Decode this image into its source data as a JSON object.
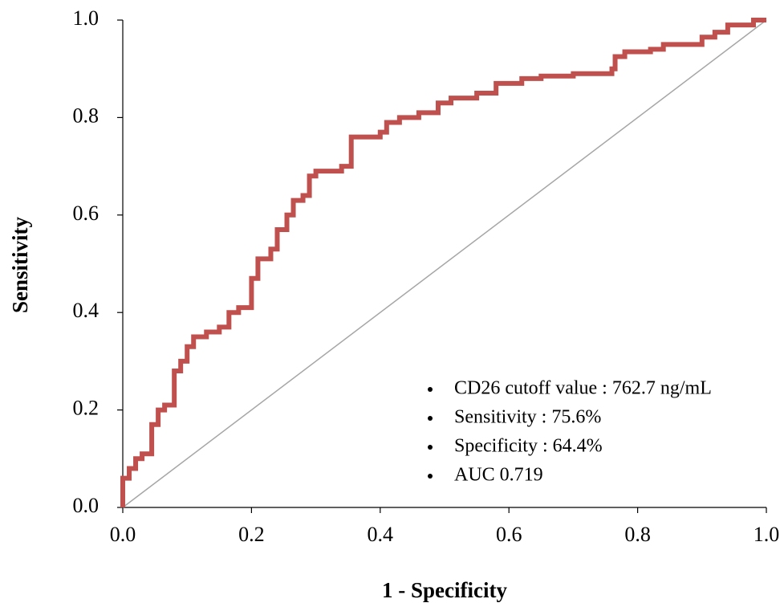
{
  "chart_data": {
    "type": "line",
    "xlabel": "1 - Specificity",
    "ylabel": "Sensitivity",
    "xlim": [
      0,
      1
    ],
    "ylim": [
      0,
      1
    ],
    "xticks": [
      {
        "value": 0,
        "label": "0.0"
      },
      0.2,
      0.4,
      0.6,
      0.8,
      {
        "value": 1,
        "label": "1.0"
      }
    ],
    "yticks": [
      {
        "value": 0,
        "label": "0.0"
      },
      0.2,
      0.4,
      0.6,
      0.8,
      {
        "value": 1,
        "label": "1.0"
      }
    ],
    "annotations": [
      "CD26 cutoff value : 762.7 ng/mL",
      "Sensitivity : 75.6%",
      "Specificity : 64.4%",
      "AUC 0.719"
    ],
    "series": [
      {
        "color": "#c0504d",
        "x": [
          0,
          0,
          0.01,
          0.01,
          0.02,
          0.02,
          0.03,
          0.03,
          0.045,
          0.045,
          0.055,
          0.055,
          0.065,
          0.065,
          0.08,
          0.08,
          0.09,
          0.09,
          0.1,
          0.1,
          0.11,
          0.11,
          0.13,
          0.13,
          0.15,
          0.15,
          0.165,
          0.165,
          0.18,
          0.18,
          0.2,
          0.2,
          0.21,
          0.21,
          0.23,
          0.23,
          0.24,
          0.24,
          0.255,
          0.255,
          0.265,
          0.265,
          0.28,
          0.28,
          0.29,
          0.29,
          0.3,
          0.3,
          0.34,
          0.34,
          0.355,
          0.355,
          0.4,
          0.4,
          0.41,
          0.41,
          0.43,
          0.43,
          0.46,
          0.46,
          0.49,
          0.49,
          0.51,
          0.51,
          0.55,
          0.55,
          0.58,
          0.58,
          0.62,
          0.62,
          0.65,
          0.65,
          0.7,
          0.7,
          0.76,
          0.76,
          0.765,
          0.765,
          0.78,
          0.78,
          0.82,
          0.82,
          0.84,
          0.84,
          0.9,
          0.9,
          0.92,
          0.92,
          0.94,
          0.94,
          0.98,
          0.98,
          1
        ],
        "values": [
          0,
          0.06,
          0.06,
          0.08,
          0.08,
          0.1,
          0.1,
          0.11,
          0.11,
          0.17,
          0.17,
          0.2,
          0.2,
          0.21,
          0.21,
          0.28,
          0.28,
          0.3,
          0.3,
          0.33,
          0.33,
          0.35,
          0.35,
          0.36,
          0.36,
          0.37,
          0.37,
          0.4,
          0.4,
          0.41,
          0.41,
          0.47,
          0.47,
          0.51,
          0.51,
          0.53,
          0.53,
          0.57,
          0.57,
          0.6,
          0.6,
          0.63,
          0.63,
          0.64,
          0.64,
          0.68,
          0.68,
          0.69,
          0.69,
          0.7,
          0.7,
          0.76,
          0.76,
          0.77,
          0.77,
          0.79,
          0.79,
          0.8,
          0.8,
          0.81,
          0.81,
          0.83,
          0.83,
          0.84,
          0.84,
          0.85,
          0.85,
          0.87,
          0.87,
          0.88,
          0.88,
          0.885,
          0.885,
          0.89,
          0.89,
          0.9,
          0.9,
          0.925,
          0.925,
          0.935,
          0.935,
          0.94,
          0.94,
          0.95,
          0.95,
          0.965,
          0.965,
          0.975,
          0.975,
          0.99,
          0.99,
          1,
          1
        ]
      },
      {
        "color": "#a6a6a6",
        "x": [
          0,
          1
        ],
        "values": [
          0,
          1
        ]
      }
    ]
  }
}
